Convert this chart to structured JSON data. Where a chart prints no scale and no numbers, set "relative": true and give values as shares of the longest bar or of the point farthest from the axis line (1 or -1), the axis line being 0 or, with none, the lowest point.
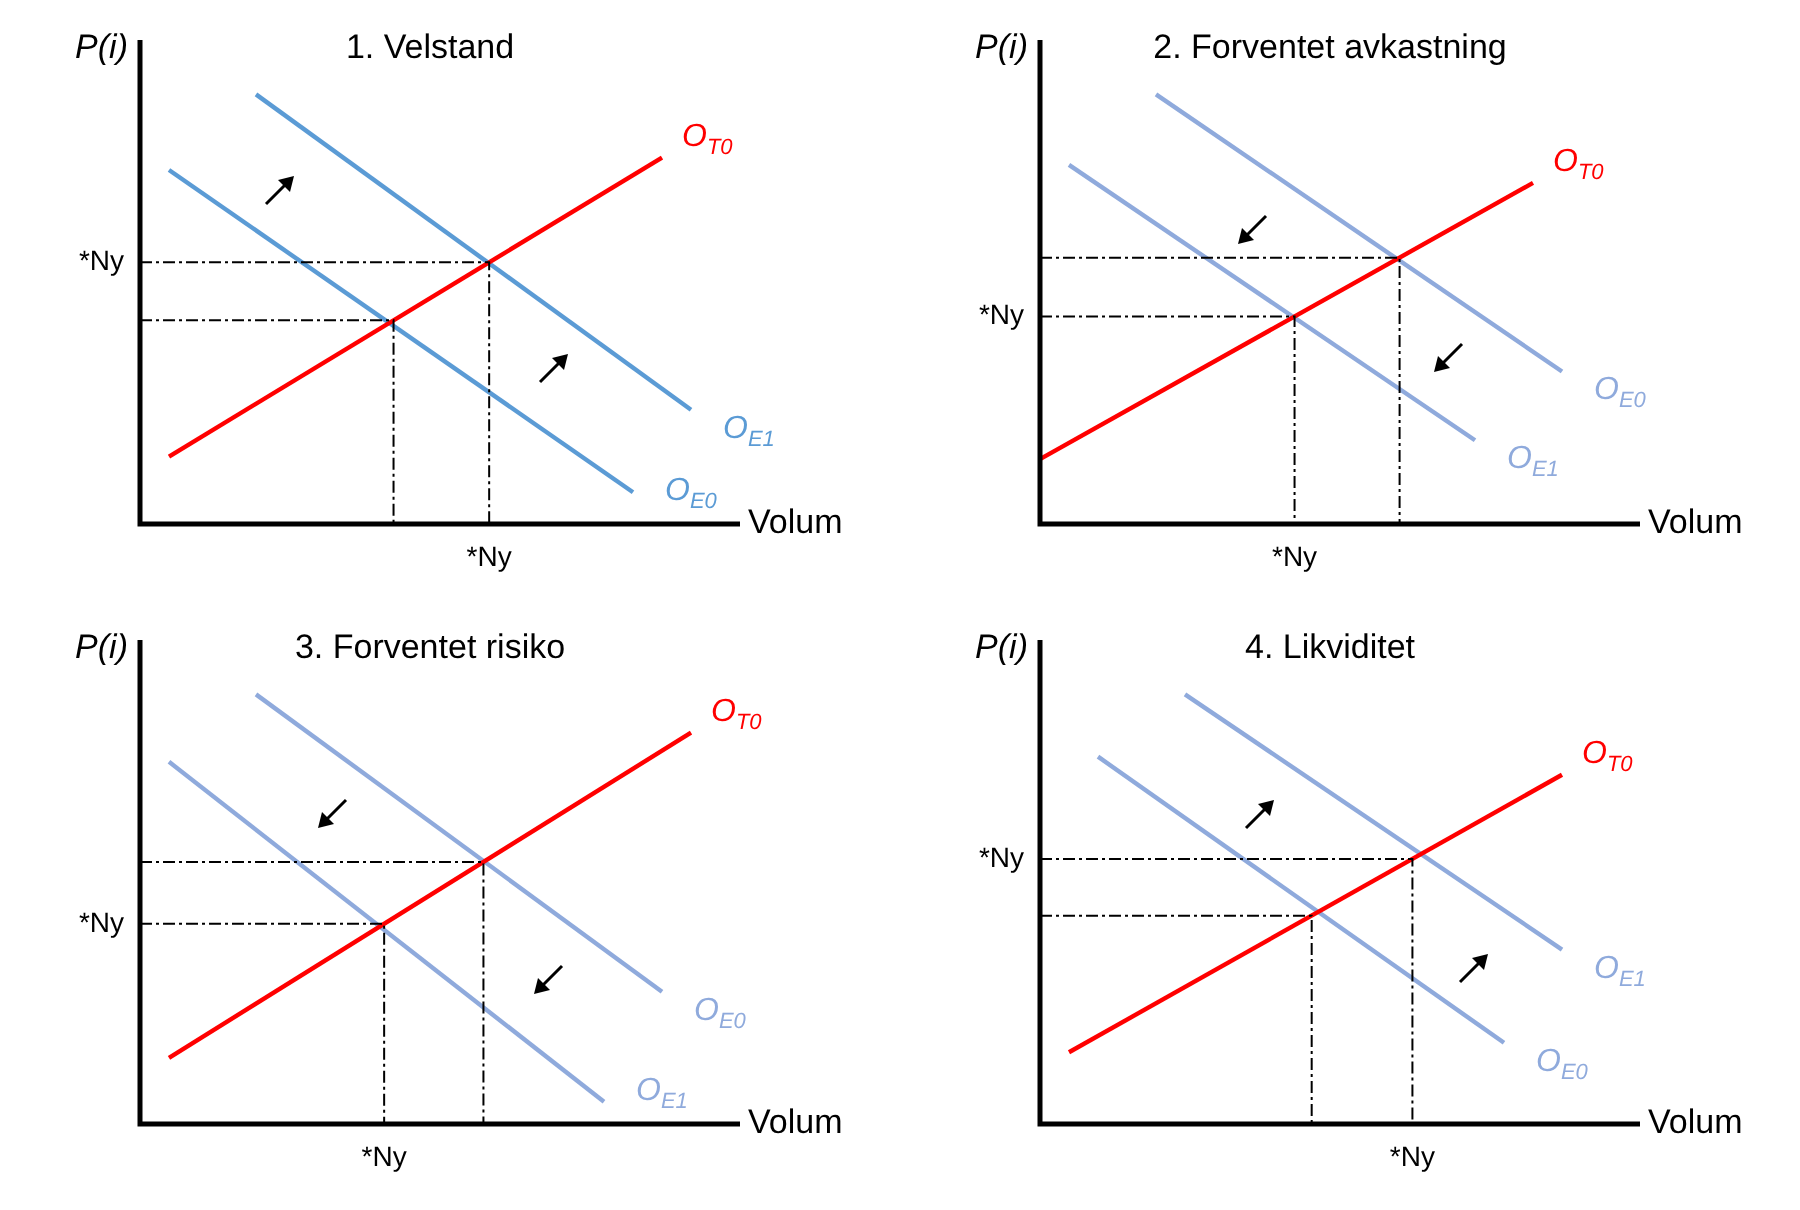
{
  "chart_data": [
    {
      "type": "line",
      "title": "1. Velstand",
      "xlabel": "Volum",
      "ylabel": "P(i)",
      "relative": true,
      "marker": "none",
      "line_style": "solid",
      "legend": false,
      "categories": [
        null,
        null,
        null,
        null,
        null,
        null,
        null,
        null,
        null,
        null,
        null,
        null,
        null,
        null,
        null,
        null,
        null,
        null,
        null,
        null,
        null
      ],
      "series": [
        {
          "name": "O$_{T0}$",
          "color": "#ff0000",
          "values": [
            null,
            0.157,
            null,
            null,
            null,
            null,
            null,
            null,
            null,
            null,
            null,
            null,
            null,
            null,
            null,
            null,
            null,
            null,
            0.853,
            null,
            null
          ]
        },
        {
          "name": "O$_{E1}$",
          "color": "#5b9bd5",
          "values": [
            null,
            null,
            null,
            null,
            1.0,
            null,
            null,
            null,
            null,
            null,
            null,
            null,
            null,
            null,
            null,
            null,
            null,
            null,
            null,
            0.266,
            null
          ]
        },
        {
          "name": "O$_{E0}$",
          "color": "#5b9bd5",
          "values": [
            null,
            0.824,
            null,
            null,
            null,
            null,
            null,
            null,
            null,
            null,
            null,
            null,
            null,
            null,
            null,
            null,
            null,
            0.074,
            null,
            null,
            null
          ]
        }
      ],
      "ref_lines": [
        {
          "axis": "y",
          "value": 0.609,
          "label": "*Ny"
        },
        {
          "axis": "y",
          "value": 0.474
        }
      ],
      "annotations": [
        "*Ny"
      ]
    },
    {
      "type": "line",
      "title": "2. Forventet avkastning",
      "xlabel": "Volum",
      "ylabel": "P(i)",
      "relative": true,
      "marker": "none",
      "line_style": "solid",
      "legend": false,
      "categories": [
        null,
        null,
        null,
        null,
        null,
        null,
        null,
        null,
        null,
        null,
        null,
        null,
        null,
        null,
        null,
        null,
        null,
        null,
        null,
        null,
        null
      ],
      "series": [
        {
          "name": "O$_{T0}$",
          "color": "#ff0000",
          "values": [
            0.151,
            null,
            null,
            null,
            null,
            null,
            null,
            null,
            null,
            null,
            null,
            null,
            null,
            null,
            null,
            null,
            null,
            0.794,
            null,
            null,
            null
          ]
        },
        {
          "name": "O$_{E0}$",
          "color": "#8faadc",
          "values": [
            null,
            null,
            null,
            null,
            1.0,
            null,
            null,
            null,
            null,
            null,
            null,
            null,
            null,
            null,
            null,
            null,
            null,
            null,
            0.355,
            null,
            null
          ]
        },
        {
          "name": "O$_{E1}$",
          "color": "#8faadc",
          "values": [
            null,
            0.836,
            null,
            null,
            null,
            null,
            null,
            null,
            null,
            null,
            null,
            null,
            null,
            null,
            null,
            0.195,
            null,
            null,
            null,
            null,
            null
          ]
        }
      ],
      "ref_lines": [
        {
          "axis": "y",
          "value": 0.483,
          "label": "*Ny"
        },
        {
          "axis": "y",
          "value": 0.62
        }
      ],
      "annotations": [
        "*Ny"
      ]
    },
    {
      "type": "line",
      "title": "3. Forventet risiko",
      "xlabel": "Volum",
      "ylabel": "P(i)",
      "relative": true,
      "marker": "none",
      "line_style": "solid",
      "legend": false,
      "categories": [
        null,
        null,
        null,
        null,
        null,
        null,
        null,
        null,
        null,
        null,
        null,
        null,
        null,
        null,
        null,
        null,
        null,
        null,
        null,
        null,
        null
      ],
      "series": [
        {
          "name": "O$_{T0}$",
          "color": "#ff0000",
          "values": [
            null,
            0.154,
            null,
            null,
            null,
            null,
            null,
            null,
            null,
            null,
            null,
            null,
            null,
            null,
            null,
            null,
            null,
            null,
            null,
            0.911,
            null
          ]
        },
        {
          "name": "O$_{E0}$",
          "color": "#8faadc",
          "values": [
            null,
            null,
            null,
            null,
            1.0,
            null,
            null,
            null,
            null,
            null,
            null,
            null,
            null,
            null,
            null,
            null,
            null,
            null,
            0.308,
            null,
            null
          ]
        },
        {
          "name": "O$_{E1}$",
          "color": "#8faadc",
          "values": [
            null,
            0.843,
            null,
            null,
            null,
            null,
            null,
            null,
            null,
            null,
            null,
            null,
            null,
            null,
            null,
            null,
            0.052,
            null,
            null,
            null,
            null
          ]
        }
      ],
      "ref_lines": [
        {
          "axis": "y",
          "value": 0.466,
          "label": "*Ny"
        },
        {
          "axis": "y",
          "value": 0.61
        }
      ],
      "annotations": [
        "*Ny"
      ]
    },
    {
      "type": "line",
      "title": "4. Likviditet",
      "xlabel": "Volum",
      "ylabel": "P(i)",
      "relative": true,
      "marker": "none",
      "line_style": "solid",
      "legend": false,
      "categories": [
        null,
        null,
        null,
        null,
        null,
        null,
        null,
        null,
        null,
        null,
        null,
        null,
        null,
        null,
        null,
        null,
        null,
        null,
        null,
        null,
        null
      ],
      "series": [
        {
          "name": "O$_{T0}$",
          "color": "#ff0000",
          "values": [
            null,
            0.167,
            null,
            null,
            null,
            null,
            null,
            null,
            null,
            null,
            null,
            null,
            null,
            null,
            null,
            null,
            null,
            null,
            0.813,
            null,
            null
          ]
        },
        {
          "name": "O$_{E1}$",
          "color": "#8faadc",
          "values": [
            null,
            null,
            null,
            null,
            null,
            1.0,
            null,
            null,
            null,
            null,
            null,
            null,
            null,
            null,
            null,
            null,
            null,
            null,
            0.406,
            null,
            null
          ]
        },
        {
          "name": "O$_{E0}$",
          "color": "#8faadc",
          "values": [
            null,
            null,
            0.855,
            null,
            null,
            null,
            null,
            null,
            null,
            null,
            null,
            null,
            null,
            null,
            null,
            null,
            0.189,
            null,
            null,
            null,
            null
          ]
        }
      ],
      "ref_lines": [
        {
          "axis": "y",
          "value": 0.617,
          "label": "*Ny"
        },
        {
          "axis": "y",
          "value": 0.485
        }
      ],
      "annotations": [
        "*Ny"
      ]
    }
  ]
}
